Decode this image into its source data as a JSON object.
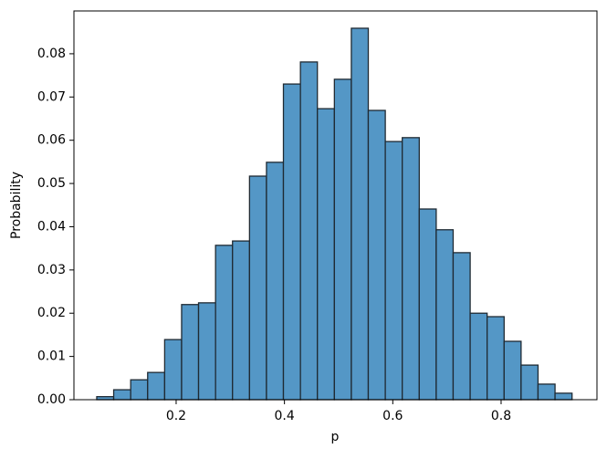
{
  "chart_data": {
    "type": "histogram",
    "x_label": "p",
    "y_label": "Probability",
    "bins": [
      0.0534,
      0.0847,
      0.1161,
      0.1474,
      0.1788,
      0.2101,
      0.2414,
      0.2728,
      0.3041,
      0.3355,
      0.3668,
      0.3981,
      0.4295,
      0.4608,
      0.4922,
      0.5235,
      0.5548,
      0.5862,
      0.6175,
      0.6489,
      0.6802,
      0.7115,
      0.7429,
      0.7742,
      0.8056,
      0.8369,
      0.8682,
      0.8996,
      0.931
    ],
    "values": [
      0.0007,
      0.0023,
      0.0046,
      0.0063,
      0.0139,
      0.022,
      0.0224,
      0.0357,
      0.0367,
      0.0517,
      0.0549,
      0.073,
      0.0781,
      0.0673,
      0.0741,
      0.0859,
      0.0669,
      0.0597,
      0.0606,
      0.0441,
      0.0393,
      0.034,
      0.02,
      0.0192,
      0.0135,
      0.008,
      0.0036,
      0.0015
    ],
    "color": "#5497c6",
    "edgecolor": "#1f2a33",
    "xlim": [
      0.0113,
      0.977
    ],
    "ylim": [
      0,
      0.0899
    ],
    "xticks": [
      0.2,
      0.4,
      0.6,
      0.8
    ],
    "yticks": [
      {
        "value": 0,
        "label": "0.00"
      },
      0.01,
      0.02,
      0.03,
      0.04,
      0.05,
      0.06,
      0.07,
      0.08
    ]
  }
}
